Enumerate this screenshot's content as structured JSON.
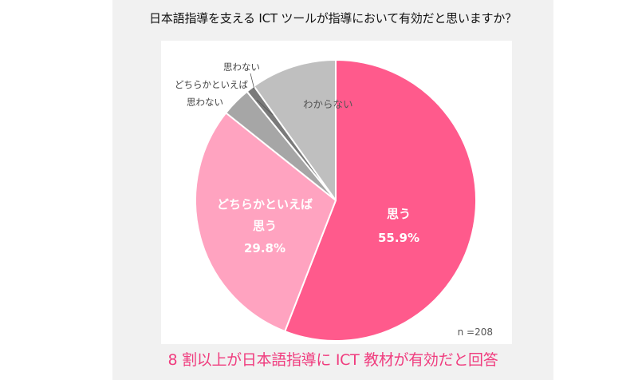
{
  "header": {
    "title": "日本語指導を支える ICT ツールが指導において有効だと思いますか？"
  },
  "footer": {
    "conclusion": "8 割以上が日本語指導に ICT 教材が有効だと回答"
  },
  "chart": {
    "sample_size": "n =208"
  },
  "labels": {
    "omou_name": "思う",
    "omou_pct": "55.9%",
    "dochira_omou_line1": "どちらかといえば",
    "dochira_omou_line2": "思う",
    "dochira_omou_pct": "29.8%",
    "dochira_omowanai_line1": "どちらかといえば",
    "dochira_omowanai_line2": "思わない",
    "omowanai": "思わない",
    "wakaranai": "わからない"
  },
  "colors": {
    "omou": "#ff5a8c",
    "dochira_omou": "#ffa3c0",
    "dochira_omowanai": "#a6a6a6",
    "omowanai": "#7a7a7a",
    "wakaranai": "#bfbfbf",
    "accent_text": "#f03c7e"
  },
  "chart_data": {
    "type": "pie",
    "title": "日本語指導を支える ICT ツールが指導において有効だと思いますか？",
    "categories": [
      "思う",
      "どちらかといえば思う",
      "どちらかといえば思わない",
      "思わない",
      "わからない"
    ],
    "values": [
      55.9,
      29.8,
      3.4,
      1.0,
      9.9
    ],
    "labels_shown": [
      "55.9%",
      "29.8%",
      "",
      "",
      ""
    ],
    "annotations": [
      "n =208",
      "8 割以上が日本語指導に ICT 教材が有効だと回答"
    ],
    "start_angle": "12 o'clock, clockwise",
    "legend": "none (direct labels)"
  }
}
